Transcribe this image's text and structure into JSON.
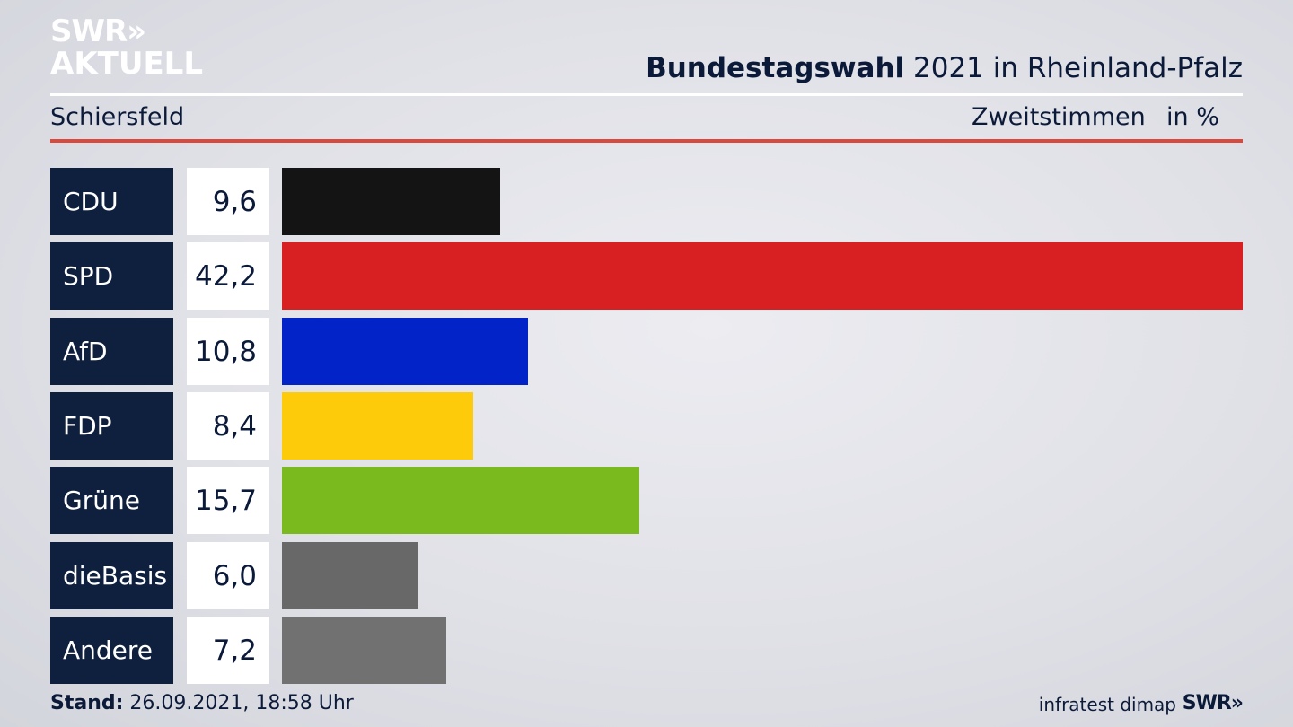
{
  "logo": {
    "line1": "SWR»",
    "line2": "AKTUELL"
  },
  "header": {
    "title_bold": "Bundestagswahl",
    "title_rest": " 2021 in Rheinland-Pfalz",
    "location": "Schiersfeld",
    "measure": "Zweitstimmen",
    "unit": "in %"
  },
  "chart_data": {
    "type": "bar",
    "orientation": "horizontal",
    "title": "Bundestagswahl 2021 in Rheinland-Pfalz",
    "subtitle": "Schiersfeld",
    "xlabel": "Zweitstimmen in %",
    "categories": [
      "CDU",
      "SPD",
      "AfD",
      "FDP",
      "Grüne",
      "dieBasis",
      "Andere"
    ],
    "values": [
      9.6,
      42.2,
      10.8,
      8.4,
      15.7,
      6.0,
      7.2
    ],
    "value_labels": [
      "9,6",
      "42,2",
      "10,8",
      "8,4",
      "15,7",
      "6,0",
      "7,2"
    ],
    "colors": [
      "#141414",
      "#d81f21",
      "#0223c8",
      "#fdcb0a",
      "#7aba1e",
      "#686868",
      "#717171"
    ],
    "xlim": [
      0,
      42.2
    ],
    "grid": false,
    "legend": "none"
  },
  "footer": {
    "stand_label": "Stand:",
    "stand_value": " 26.09.2021, 18:58 Uhr",
    "source": "infratest dimap",
    "brand": "SWR»"
  }
}
